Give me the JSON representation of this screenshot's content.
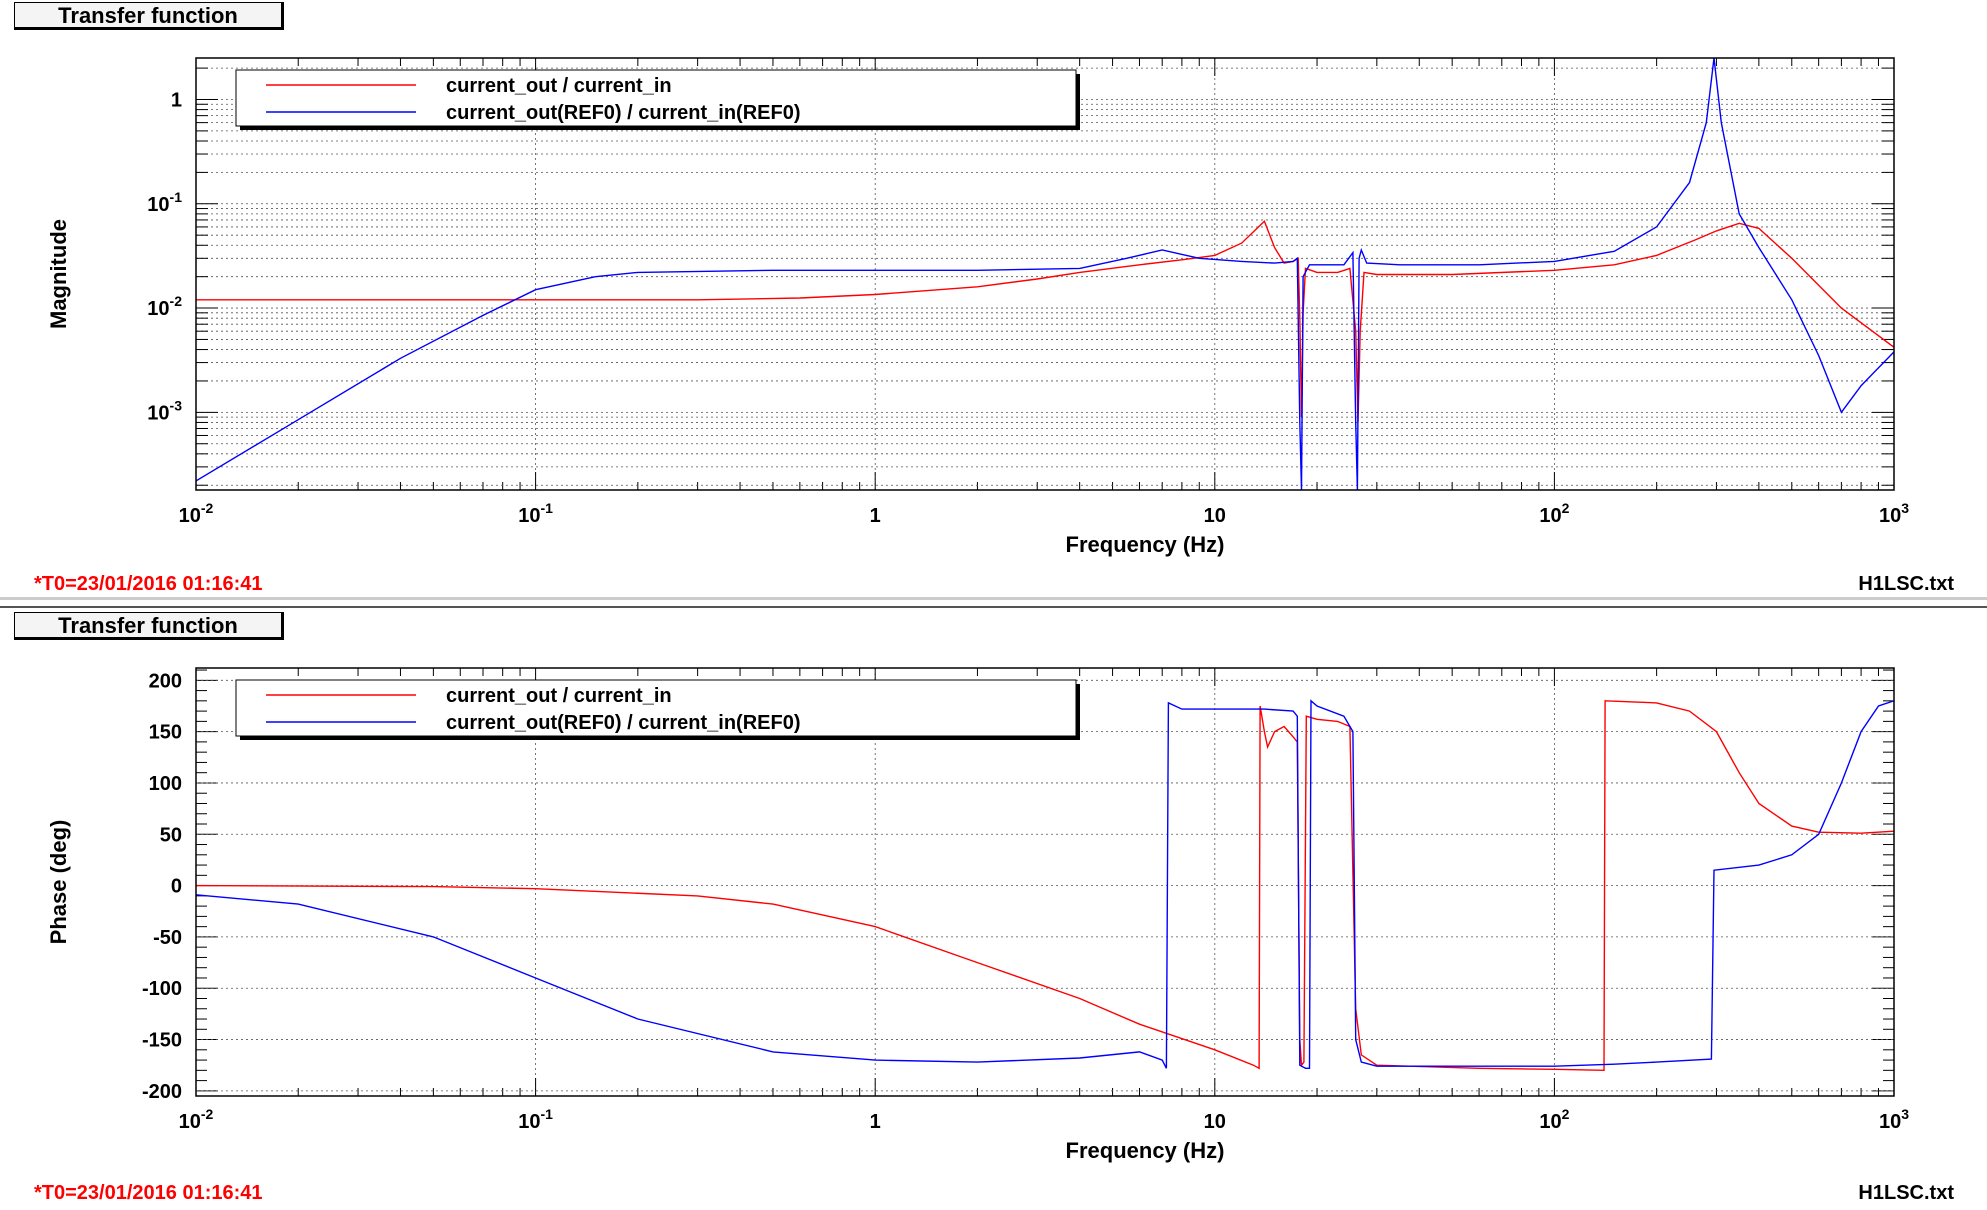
{
  "panels": {
    "magnitude": {
      "title": "Transfer function",
      "footer_left": "*T0=23/01/2016 01:16:41",
      "footer_right": "H1LSC.txt"
    },
    "phase": {
      "title": "Transfer function",
      "footer_left": "*T0=23/01/2016 01:16:41",
      "footer_right": "H1LSC.txt"
    }
  },
  "colors": {
    "current": "#ff0000",
    "reference": "#0000ff",
    "grid": "#555555"
  },
  "chart_data": [
    {
      "type": "line",
      "title": "Transfer function",
      "xlabel": "Frequency (Hz)",
      "ylabel": "Magnitude",
      "xscale": "log",
      "yscale": "log",
      "xlim": [
        0.01,
        1000
      ],
      "ylim": [
        0.00018,
        2.5
      ],
      "grid": true,
      "legend_position": "top-left",
      "x_ticks": [
        {
          "v": 0.01,
          "base": "10",
          "exp": "-2"
        },
        {
          "v": 0.1,
          "base": "10",
          "exp": "-1"
        },
        {
          "v": 1,
          "base": "1",
          "exp": ""
        },
        {
          "v": 10,
          "base": "10",
          "exp": ""
        },
        {
          "v": 100,
          "base": "10",
          "exp": "2"
        },
        {
          "v": 1000,
          "base": "10",
          "exp": "3"
        }
      ],
      "y_ticks": [
        {
          "v": 1,
          "base": "1",
          "exp": ""
        },
        {
          "v": 0.1,
          "base": "10",
          "exp": "-1"
        },
        {
          "v": 0.01,
          "base": "10",
          "exp": "-2"
        },
        {
          "v": 0.001,
          "base": "10",
          "exp": "-3"
        }
      ],
      "series": [
        {
          "name": "current_out / current_in",
          "color": "#ff0000",
          "points": [
            [
              0.01,
              0.012
            ],
            [
              0.03,
              0.012
            ],
            [
              0.1,
              0.012
            ],
            [
              0.3,
              0.012
            ],
            [
              0.6,
              0.0125
            ],
            [
              1,
              0.0135
            ],
            [
              2,
              0.016
            ],
            [
              3,
              0.019
            ],
            [
              4,
              0.022
            ],
            [
              6,
              0.026
            ],
            [
              8,
              0.029
            ],
            [
              10,
              0.032
            ],
            [
              12,
              0.042
            ],
            [
              14,
              0.068
            ],
            [
              15,
              0.038
            ],
            [
              16,
              0.027
            ],
            [
              17,
              0.028
            ],
            [
              17.6,
              0.03
            ],
            [
              17.8,
              0.008
            ],
            [
              18,
              0.0009
            ],
            [
              18.2,
              0.009
            ],
            [
              18.5,
              0.024
            ],
            [
              20,
              0.022
            ],
            [
              23,
              0.022
            ],
            [
              25,
              0.024
            ],
            [
              26,
              0.006
            ],
            [
              26.4,
              0.0008
            ],
            [
              26.8,
              0.006
            ],
            [
              27.5,
              0.022
            ],
            [
              30,
              0.021
            ],
            [
              50,
              0.021
            ],
            [
              100,
              0.023
            ],
            [
              150,
              0.026
            ],
            [
              200,
              0.032
            ],
            [
              260,
              0.045
            ],
            [
              300,
              0.055
            ],
            [
              350,
              0.065
            ],
            [
              400,
              0.058
            ],
            [
              500,
              0.03
            ],
            [
              700,
              0.01
            ],
            [
              1000,
              0.0042
            ]
          ]
        },
        {
          "name": "current_out(REF0) / current_in(REF0)",
          "color": "#0000ff",
          "points": [
            [
              0.01,
              0.00022
            ],
            [
              0.02,
              0.00085
            ],
            [
              0.04,
              0.0033
            ],
            [
              0.07,
              0.0085
            ],
            [
              0.1,
              0.015
            ],
            [
              0.15,
              0.02
            ],
            [
              0.2,
              0.022
            ],
            [
              0.5,
              0.023
            ],
            [
              1,
              0.023
            ],
            [
              2,
              0.023
            ],
            [
              4,
              0.024
            ],
            [
              5.5,
              0.03
            ],
            [
              7,
              0.036
            ],
            [
              9,
              0.03
            ],
            [
              12,
              0.028
            ],
            [
              15,
              0.027
            ],
            [
              17,
              0.028
            ],
            [
              17.5,
              0.03
            ],
            [
              17.8,
              0.0008
            ],
            [
              18,
              0.00018
            ],
            [
              18.2,
              0.02
            ],
            [
              19,
              0.026
            ],
            [
              21,
              0.026
            ],
            [
              24,
              0.026
            ],
            [
              25.5,
              0.034
            ],
            [
              26,
              0.0008
            ],
            [
              26.3,
              0.00018
            ],
            [
              26.6,
              0.03
            ],
            [
              27,
              0.036
            ],
            [
              28,
              0.027
            ],
            [
              35,
              0.026
            ],
            [
              60,
              0.026
            ],
            [
              100,
              0.028
            ],
            [
              150,
              0.035
            ],
            [
              200,
              0.06
            ],
            [
              250,
              0.16
            ],
            [
              280,
              0.6
            ],
            [
              295,
              2.5
            ],
            [
              310,
              0.6
            ],
            [
              350,
              0.08
            ],
            [
              400,
              0.038
            ],
            [
              500,
              0.012
            ],
            [
              600,
              0.0035
            ],
            [
              700,
              0.001
            ],
            [
              800,
              0.0018
            ],
            [
              1000,
              0.0038
            ]
          ]
        }
      ]
    },
    {
      "type": "line",
      "title": "Transfer function",
      "xlabel": "Frequency (Hz)",
      "ylabel": "Phase (deg)",
      "xscale": "log",
      "yscale": "linear",
      "xlim": [
        0.01,
        1000
      ],
      "ylim": [
        -205,
        212
      ],
      "grid": true,
      "legend_position": "top-left",
      "x_ticks": [
        {
          "v": 0.01,
          "base": "10",
          "exp": "-2"
        },
        {
          "v": 0.1,
          "base": "10",
          "exp": "-1"
        },
        {
          "v": 1,
          "base": "1",
          "exp": ""
        },
        {
          "v": 10,
          "base": "10",
          "exp": ""
        },
        {
          "v": 100,
          "base": "10",
          "exp": "2"
        },
        {
          "v": 1000,
          "base": "10",
          "exp": "3"
        }
      ],
      "y_ticks": [
        {
          "v": 200,
          "label": "200"
        },
        {
          "v": 150,
          "label": "150"
        },
        {
          "v": 100,
          "label": "100"
        },
        {
          "v": 50,
          "label": "50"
        },
        {
          "v": 0,
          "label": "0"
        },
        {
          "v": -50,
          "label": "-50"
        },
        {
          "v": -100,
          "label": "-100"
        },
        {
          "v": -150,
          "label": "-150"
        },
        {
          "v": -200,
          "label": "-200"
        }
      ],
      "series": [
        {
          "name": "current_out / current_in",
          "color": "#ff0000",
          "points": [
            [
              0.01,
              0
            ],
            [
              0.05,
              -1
            ],
            [
              0.1,
              -3
            ],
            [
              0.3,
              -10
            ],
            [
              0.5,
              -18
            ],
            [
              1,
              -40
            ],
            [
              2,
              -75
            ],
            [
              4,
              -110
            ],
            [
              6,
              -135
            ],
            [
              10,
              -160
            ],
            [
              13,
              -175
            ],
            [
              13.5,
              -178
            ],
            [
              13.6,
              175
            ],
            [
              14,
              150
            ],
            [
              14.3,
              135
            ],
            [
              15,
              150
            ],
            [
              16,
              155
            ],
            [
              17,
              145
            ],
            [
              17.5,
              140
            ],
            [
              17.8,
              -150
            ],
            [
              18,
              -175
            ],
            [
              18.3,
              -172
            ],
            [
              18.6,
              165
            ],
            [
              20,
              162
            ],
            [
              23,
              160
            ],
            [
              25,
              155
            ],
            [
              26,
              -120
            ],
            [
              27,
              -165
            ],
            [
              30,
              -175
            ],
            [
              60,
              -178
            ],
            [
              100,
              -179
            ],
            [
              140,
              -180
            ],
            [
              141,
              180
            ],
            [
              200,
              178
            ],
            [
              250,
              170
            ],
            [
              300,
              150
            ],
            [
              350,
              110
            ],
            [
              400,
              80
            ],
            [
              500,
              58
            ],
            [
              600,
              52
            ],
            [
              800,
              51
            ],
            [
              1000,
              53
            ]
          ]
        },
        {
          "name": "current_out(REF0) / current_in(REF0)",
          "color": "#0000ff",
          "points": [
            [
              0.01,
              -9
            ],
            [
              0.02,
              -18
            ],
            [
              0.05,
              -50
            ],
            [
              0.1,
              -90
            ],
            [
              0.2,
              -130
            ],
            [
              0.5,
              -162
            ],
            [
              1,
              -170
            ],
            [
              2,
              -172
            ],
            [
              4,
              -168
            ],
            [
              6,
              -162
            ],
            [
              7,
              -170
            ],
            [
              7.2,
              -178
            ],
            [
              7.3,
              178
            ],
            [
              8,
              172
            ],
            [
              10,
              172
            ],
            [
              14,
              172
            ],
            [
              17,
              170
            ],
            [
              17.5,
              165
            ],
            [
              17.8,
              -175
            ],
            [
              18.5,
              -178
            ],
            [
              19,
              -178
            ],
            [
              19.2,
              180
            ],
            [
              20,
              175
            ],
            [
              24,
              165
            ],
            [
              25.5,
              150
            ],
            [
              26,
              -150
            ],
            [
              27,
              -172
            ],
            [
              30,
              -176
            ],
            [
              60,
              -176
            ],
            [
              100,
              -176
            ],
            [
              150,
              -174
            ],
            [
              200,
              -172
            ],
            [
              290,
              -169
            ],
            [
              295,
              15
            ],
            [
              400,
              20
            ],
            [
              500,
              30
            ],
            [
              600,
              50
            ],
            [
              700,
              100
            ],
            [
              800,
              150
            ],
            [
              900,
              175
            ],
            [
              1000,
              180
            ]
          ]
        }
      ]
    }
  ]
}
